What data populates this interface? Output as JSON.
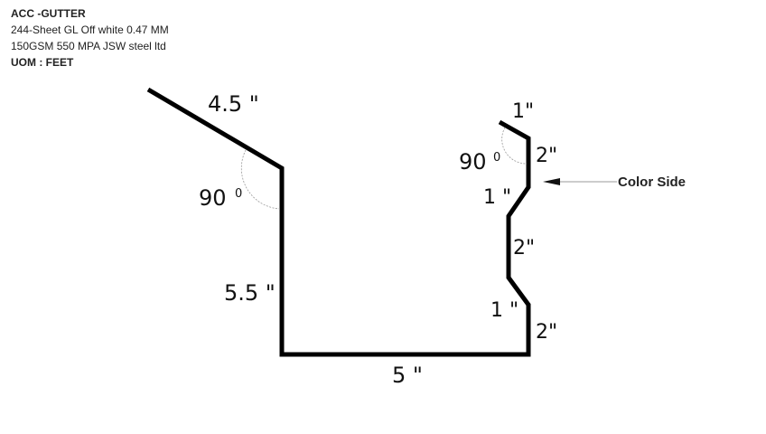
{
  "info": {
    "title": "ACC -GUTTER",
    "spec": "244-Sheet GL Off white 0.47 MM 150GSM 550 MPA JSW steel ltd",
    "uom": "UOM : FEET"
  },
  "diagram": {
    "dimensions": {
      "flange_left": "4.5 \"",
      "back_height": "5.5 \"",
      "base": "5 \"",
      "top_hem": "1\"",
      "front_top": "2\"",
      "step1": "1 \"",
      "front_mid": "2\"",
      "step2": "1 \"",
      "front_bottom": "2\""
    },
    "angles": {
      "left": "90",
      "right": "90",
      "degree_mark": "0"
    },
    "color_side_label": "Color Side",
    "colors": {
      "profile": "#000000",
      "arc": "#9a9a9a",
      "arrow": "#555555"
    }
  }
}
